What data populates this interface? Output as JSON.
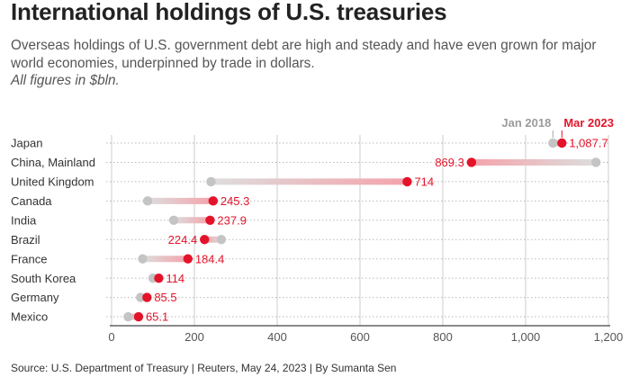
{
  "header": {
    "title": "International holdings of U.S. treasuries",
    "subtitle": "Overseas holdings of U.S. government debt are high and steady and have even grown for major world economies, underpinned by trade in dollars.",
    "note": "All figures in $bln."
  },
  "footer": {
    "source": "Source: U.S. Department of Treasury | Reuters, May 24, 2023 | By Sumanta Sen"
  },
  "colors": {
    "start": "#c4c4c4",
    "end": "#e3142a",
    "grid": "#cccccc",
    "axis": "#444444",
    "label_end": "#e3142a",
    "label_start": "#9b9b9b"
  },
  "chart_data": {
    "type": "dumbbell",
    "title": "International holdings of U.S. treasuries",
    "unit": "$bln",
    "legend": [
      {
        "name": "Jan 2018",
        "label": "Jan 2018"
      },
      {
        "name": "Mar 2023",
        "label": "Mar 2023"
      }
    ],
    "xlim": [
      0,
      1200
    ],
    "xticks": [
      0,
      200,
      400,
      600,
      800,
      1000,
      1200
    ],
    "xtick_labels": [
      "0",
      "200",
      "400",
      "600",
      "800",
      "1,000",
      "1,200"
    ],
    "series": [
      {
        "country": "Japan",
        "jan2018": 1066,
        "mar2023": 1087.7,
        "label": "1,087.7"
      },
      {
        "country": "China, Mainland",
        "jan2018": 1170,
        "mar2023": 869.3,
        "label": "869.3"
      },
      {
        "country": "United Kingdom",
        "jan2018": 240,
        "mar2023": 714,
        "label": "714"
      },
      {
        "country": "Canada",
        "jan2018": 87,
        "mar2023": 245.3,
        "label": "245.3"
      },
      {
        "country": "India",
        "jan2018": 150,
        "mar2023": 237.9,
        "label": "237.9"
      },
      {
        "country": "Brazil",
        "jan2018": 265,
        "mar2023": 224.4,
        "label": "224.4"
      },
      {
        "country": "France",
        "jan2018": 75,
        "mar2023": 184.4,
        "label": "184.4"
      },
      {
        "country": "South Korea",
        "jan2018": 100,
        "mar2023": 114,
        "label": "114"
      },
      {
        "country": "Germany",
        "jan2018": 70,
        "mar2023": 85.5,
        "label": "85.5"
      },
      {
        "country": "Mexico",
        "jan2018": 40,
        "mar2023": 65.1,
        "label": "65.1"
      }
    ]
  }
}
